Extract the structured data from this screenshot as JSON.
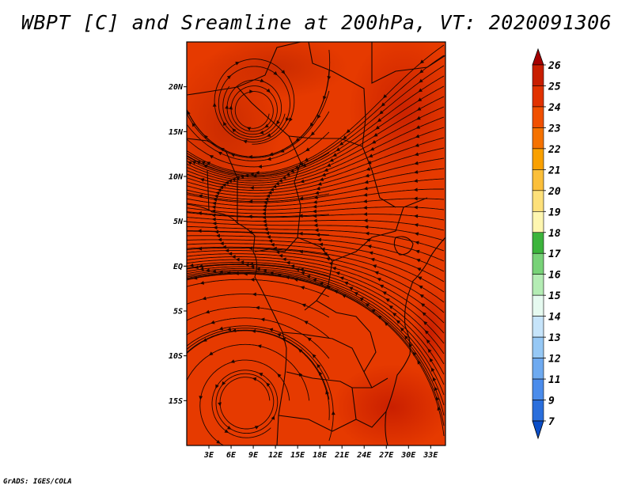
{
  "chart_data": {
    "type": "heatmap",
    "title": "WBPT [C] and Sreamline at 200hPa, VT: 2020091306",
    "variable": "WBPT [C]",
    "overlay": "streamlines",
    "level": "200hPa",
    "valid_time": "2020091306",
    "x_axis": {
      "range": [
        0,
        35
      ],
      "ticks": [
        3,
        6,
        9,
        12,
        15,
        18,
        21,
        24,
        27,
        30,
        33
      ],
      "tick_labels": [
        "3E",
        "6E",
        "9E",
        "12E",
        "15E",
        "18E",
        "21E",
        "24E",
        "27E",
        "30E",
        "33E"
      ]
    },
    "y_axis": {
      "range": [
        -20,
        25
      ],
      "ticks": [
        20,
        15,
        10,
        5,
        0,
        -5,
        -10,
        -15
      ],
      "tick_labels": [
        "20N",
        "15N",
        "10N",
        "5N",
        "EQ",
        "5S",
        "10S",
        "15S"
      ]
    },
    "field_estimate": {
      "dominant_range": [
        23,
        24
      ],
      "patches_range": [
        24,
        25
      ],
      "patches": [
        {
          "region": "northwest",
          "value": 24.5
        },
        {
          "region": "northeast",
          "value": 24.5
        },
        {
          "region": "southeast",
          "value": 24.5
        }
      ]
    },
    "vortices": [
      {
        "lon": 9,
        "lat": 17
      },
      {
        "lon": 8,
        "lat": -15
      }
    ],
    "colorbar": {
      "labels": [
        "26",
        "25",
        "24",
        "23",
        "22",
        "21",
        "20",
        "19",
        "18",
        "17",
        "16",
        "15",
        "14",
        "13",
        "12",
        "11",
        "9",
        "7"
      ],
      "colors": [
        "#a50000",
        "#c81e00",
        "#e13200",
        "#f05000",
        "#f57200",
        "#f9a000",
        "#fbbf3a",
        "#fde07a",
        "#fef6b0",
        "#3cb43c",
        "#78d278",
        "#b4ecb4",
        "#e6faf0",
        "#c6e4fa",
        "#96c8f5",
        "#6eaaf0",
        "#4b8ceb",
        "#2a6edc",
        "#0a4ec8"
      ]
    },
    "credit": "GrADS: IGES/COLA"
  }
}
